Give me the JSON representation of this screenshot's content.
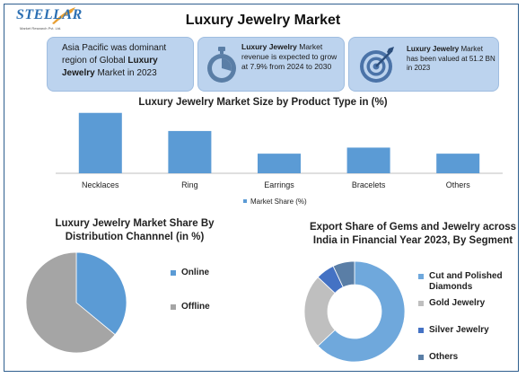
{
  "logo": {
    "word": "STELLAR",
    "sub": "Market Research Pvt. Ltd."
  },
  "header": {
    "title": "Luxury Jewelry Market"
  },
  "cards": [
    {
      "pre": "Asia Pacific was dominant region of Global ",
      "bold": "Luxury Jewelry",
      "post": " Market in 2023"
    },
    {
      "pre": "",
      "bold": "Luxury Jewelry",
      "post": " Market revenue is expected to grow at 7.9% from 2024 to 2030"
    },
    {
      "pre": "",
      "bold": "Luxury Jewelry",
      "post": " Market has been valued at 51.2 BN in 2023"
    }
  ],
  "icons": {
    "card2": "stopwatch-icon",
    "card3": "target-icon"
  },
  "colors": {
    "accent": "#5b9bd5",
    "gray": "#a5a5a5",
    "dark_blue": "#4472c4",
    "steel": "#5a7ea6",
    "card_bg": "#bcd3ee",
    "light_blue": "#6fa8dc"
  },
  "chart_data": [
    {
      "type": "bar",
      "title": "Luxury Jewelry Market Size by Product Type in (%)",
      "categories": [
        "Necklaces",
        "Ring",
        "Earrings",
        "Bracelets",
        "Others"
      ],
      "series": [
        {
          "name": "Market Share (%)",
          "values": [
            40,
            28,
            13,
            17,
            13
          ]
        }
      ],
      "ylim": [
        0,
        44
      ],
      "legend": "bottom",
      "grid": false
    },
    {
      "type": "pie",
      "title": "Luxury Jewelry Market Share By Distribution Channnel (in %)",
      "labels": [
        "Online",
        "Offline"
      ],
      "values": [
        36,
        64
      ],
      "legend": "right"
    },
    {
      "type": "pie",
      "subtype": "donut",
      "title": "Export Share of Gems and Jewelry across India in Financial Year 2023, By Segment",
      "labels": [
        "Cut and Polished Diamonds",
        "Gold Jewelry",
        "Silver Jewelry",
        "Others"
      ],
      "values": [
        63,
        24,
        6,
        7
      ],
      "legend": "right"
    }
  ]
}
